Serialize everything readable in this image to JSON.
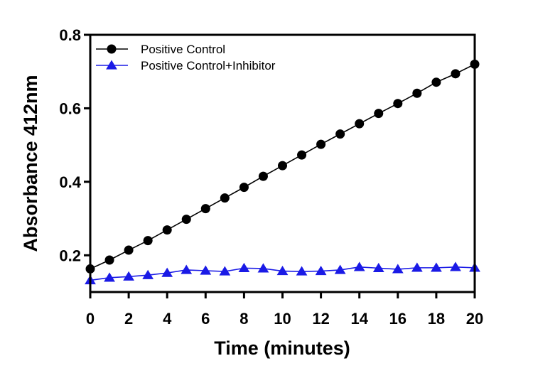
{
  "chart_data": {
    "type": "line",
    "title": "",
    "xlabel": "Time (minutes)",
    "ylabel": "Absorbance 412nm",
    "xlim": [
      0,
      20
    ],
    "ylim": [
      0.1,
      0.8
    ],
    "xticks": [
      0,
      2,
      4,
      6,
      8,
      10,
      12,
      14,
      16,
      18,
      20
    ],
    "xtick_labels": [
      "0",
      "2",
      "4",
      "6",
      "8",
      "10",
      "12",
      "14",
      "16",
      "18",
      "20"
    ],
    "yticks": [
      0.2,
      0.4,
      0.6,
      0.8
    ],
    "ytick_labels": [
      "0.2",
      "0.4",
      "0.6",
      "0.8"
    ],
    "grid": false,
    "legend_position": "top-left",
    "x": [
      0,
      1,
      2,
      3,
      4,
      5,
      6,
      7,
      8,
      9,
      10,
      11,
      12,
      13,
      14,
      15,
      16,
      17,
      18,
      19,
      20
    ],
    "series": [
      {
        "name": "Positive Control",
        "color": "#000000",
        "marker": "circle",
        "values": [
          0.163,
          0.187,
          0.214,
          0.24,
          0.269,
          0.298,
          0.327,
          0.356,
          0.385,
          0.415,
          0.444,
          0.473,
          0.502,
          0.53,
          0.558,
          0.586,
          0.613,
          0.641,
          0.671,
          0.694,
          0.72
        ]
      },
      {
        "name": "Positive Control+Inhibitor",
        "color": "#1a1ae6",
        "marker": "triangle",
        "values": [
          0.132,
          0.139,
          0.142,
          0.146,
          0.152,
          0.16,
          0.158,
          0.156,
          0.165,
          0.164,
          0.157,
          0.156,
          0.157,
          0.16,
          0.168,
          0.165,
          0.162,
          0.166,
          0.166,
          0.168,
          0.166
        ]
      }
    ]
  }
}
